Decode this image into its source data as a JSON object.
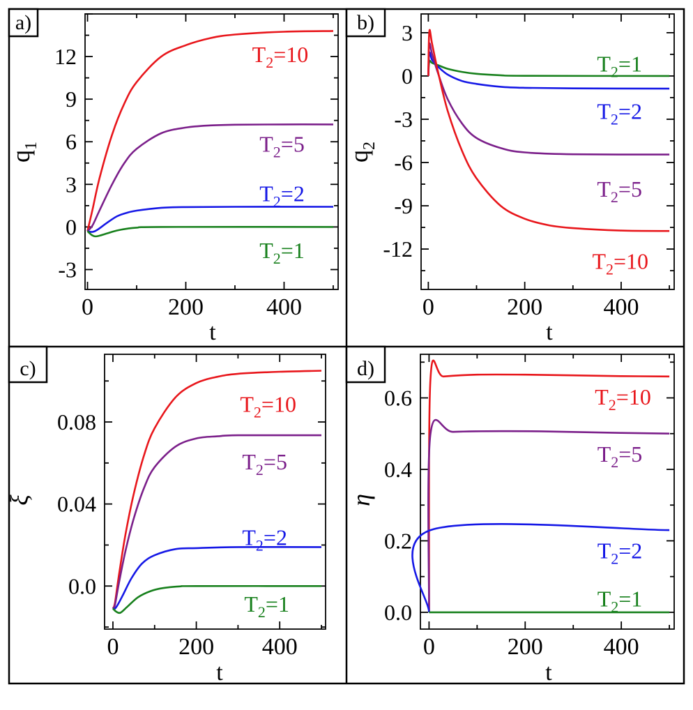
{
  "chart_data": [
    {
      "panel_label": "a)",
      "type": "line",
      "xlabel": "t",
      "ylabel": "q",
      "ylabel_sub": "1",
      "xlim": [
        -5,
        510
      ],
      "ylim": [
        -4.4,
        15
      ],
      "xticks": [
        0,
        200,
        400
      ],
      "xtick_labels": [
        "0",
        "200",
        "400"
      ],
      "yticks": [
        -3,
        0,
        3,
        6,
        9,
        12
      ],
      "ytick_labels": [
        "-3",
        "0",
        "3",
        "6",
        "9",
        "12"
      ],
      "series": [
        {
          "name": "T2=10",
          "label_main": "T",
          "label_sub": "2",
          "label_rest": "=10",
          "color": "#e8161b",
          "label_pos": [
            335,
            12.2
          ],
          "points": [
            [
              0,
              -0.3
            ],
            [
              10,
              1.2
            ],
            [
              25,
              3.5
            ],
            [
              50,
              6.5
            ],
            [
              75,
              8.7
            ],
            [
              100,
              10.2
            ],
            [
              150,
              12.0
            ],
            [
              200,
              12.8
            ],
            [
              250,
              13.3
            ],
            [
              300,
              13.55
            ],
            [
              400,
              13.75
            ],
            [
              500,
              13.8
            ]
          ]
        },
        {
          "name": "T2=5",
          "label_main": "T",
          "label_sub": "2",
          "label_rest": "=5",
          "color": "#7b1f8a",
          "label_pos": [
            350,
            5.9
          ],
          "points": [
            [
              0,
              -0.3
            ],
            [
              10,
              0.1
            ],
            [
              25,
              1.2
            ],
            [
              50,
              3.0
            ],
            [
              75,
              4.5
            ],
            [
              100,
              5.5
            ],
            [
              150,
              6.6
            ],
            [
              200,
              7.0
            ],
            [
              250,
              7.15
            ],
            [
              300,
              7.2
            ],
            [
              400,
              7.22
            ],
            [
              500,
              7.22
            ]
          ]
        },
        {
          "name": "T2=2",
          "label_main": "T",
          "label_sub": "2",
          "label_rest": "=2",
          "color": "#1518e6",
          "label_pos": [
            350,
            2.4
          ],
          "points": [
            [
              0,
              -0.3
            ],
            [
              10,
              -0.35
            ],
            [
              20,
              -0.2
            ],
            [
              40,
              0.3
            ],
            [
              60,
              0.75
            ],
            [
              80,
              1.0
            ],
            [
              100,
              1.15
            ],
            [
              150,
              1.35
            ],
            [
              200,
              1.4
            ],
            [
              300,
              1.42
            ],
            [
              500,
              1.42
            ]
          ]
        },
        {
          "name": "T2=1",
          "label_main": "T",
          "label_sub": "2",
          "label_rest": "=1",
          "color": "#17801c",
          "label_pos": [
            350,
            -1.6
          ],
          "points": [
            [
              0,
              -0.3
            ],
            [
              10,
              -0.6
            ],
            [
              20,
              -0.65
            ],
            [
              40,
              -0.45
            ],
            [
              60,
              -0.25
            ],
            [
              80,
              -0.12
            ],
            [
              100,
              -0.05
            ],
            [
              150,
              0
            ],
            [
              500,
              0
            ]
          ]
        }
      ]
    },
    {
      "panel_label": "b)",
      "type": "line",
      "xlabel": "t",
      "ylabel": "q",
      "ylabel_sub": "2",
      "xlim": [
        -15,
        510
      ],
      "ylim": [
        -14.8,
        4.3
      ],
      "xticks": [
        0,
        200,
        400
      ],
      "xtick_labels": [
        "0",
        "200",
        "400"
      ],
      "yticks": [
        -12,
        -9,
        -6,
        -3,
        0,
        3
      ],
      "ytick_labels": [
        "-12",
        "-9",
        "-6",
        "-3",
        "0",
        "3"
      ],
      "series": [
        {
          "name": "T2=1",
          "label_main": "T",
          "label_sub": "2",
          "label_rest": "=1",
          "color": "#17801c",
          "label_pos": [
            350,
            0.9
          ],
          "points": [
            [
              0,
              0
            ],
            [
              2,
              1.0
            ],
            [
              8,
              0.9
            ],
            [
              20,
              0.75
            ],
            [
              40,
              0.5
            ],
            [
              70,
              0.28
            ],
            [
              100,
              0.15
            ],
            [
              150,
              0.05
            ],
            [
              200,
              0.01
            ],
            [
              500,
              0
            ]
          ]
        },
        {
          "name": "T2=2",
          "label_main": "T",
          "label_sub": "2",
          "label_rest": "=2",
          "color": "#1518e6",
          "label_pos": [
            350,
            -2.4
          ],
          "points": [
            [
              0,
              0
            ],
            [
              2,
              1.6
            ],
            [
              8,
              1.1
            ],
            [
              20,
              0.65
            ],
            [
              40,
              0.1
            ],
            [
              70,
              -0.35
            ],
            [
              100,
              -0.55
            ],
            [
              150,
              -0.75
            ],
            [
              200,
              -0.82
            ],
            [
              300,
              -0.86
            ],
            [
              500,
              -0.88
            ]
          ]
        },
        {
          "name": "T2=5",
          "label_main": "T",
          "label_sub": "2",
          "label_rest": "=5",
          "color": "#7b1f8a",
          "label_pos": [
            350,
            -7.8
          ],
          "points": [
            [
              0,
              0
            ],
            [
              2,
              2.2
            ],
            [
              8,
              1.5
            ],
            [
              20,
              0.2
            ],
            [
              40,
              -1.6
            ],
            [
              70,
              -3.3
            ],
            [
              100,
              -4.3
            ],
            [
              150,
              -5.0
            ],
            [
              200,
              -5.3
            ],
            [
              300,
              -5.43
            ],
            [
              500,
              -5.45
            ]
          ]
        },
        {
          "name": "T2=10",
          "label_main": "T",
          "label_sub": "2",
          "label_rest": "=10",
          "color": "#e8161b",
          "label_pos": [
            340,
            -12.8
          ],
          "points": [
            [
              0,
              0
            ],
            [
              2,
              3.1
            ],
            [
              8,
              2.2
            ],
            [
              20,
              0.3
            ],
            [
              40,
              -2.4
            ],
            [
              70,
              -5.2
            ],
            [
              100,
              -7.1
            ],
            [
              150,
              -9.0
            ],
            [
              200,
              -9.9
            ],
            [
              250,
              -10.35
            ],
            [
              300,
              -10.55
            ],
            [
              400,
              -10.72
            ],
            [
              500,
              -10.75
            ]
          ]
        }
      ]
    },
    {
      "panel_label": "c)",
      "type": "line",
      "xlabel": "t",
      "ylabel": "ξ",
      "ylabel_sub": "",
      "xlim": [
        -20,
        510
      ],
      "ylim": [
        -0.021,
        0.113
      ],
      "xticks": [
        0,
        200,
        400
      ],
      "xtick_labels": [
        "0",
        "200",
        "400"
      ],
      "yticks": [
        0.0,
        0.04,
        0.08
      ],
      "ytick_labels": [
        "0.0",
        "0.04",
        "0.08"
      ],
      "series": [
        {
          "name": "T2=10",
          "label_main": "T",
          "label_sub": "2",
          "label_rest": "=10",
          "color": "#e8161b",
          "label_pos": [
            305,
            0.089
          ],
          "points": [
            [
              0,
              -0.011
            ],
            [
              5,
              -0.008
            ],
            [
              15,
              0.006
            ],
            [
              30,
              0.025
            ],
            [
              50,
              0.045
            ],
            [
              75,
              0.064
            ],
            [
              100,
              0.077
            ],
            [
              150,
              0.092
            ],
            [
              200,
              0.099
            ],
            [
              250,
              0.102
            ],
            [
              300,
              0.1035
            ],
            [
              400,
              0.1045
            ],
            [
              500,
              0.105
            ]
          ]
        },
        {
          "name": "T2=5",
          "label_main": "T",
          "label_sub": "2",
          "label_rest": "=5",
          "color": "#7b1f8a",
          "label_pos": [
            310,
            0.061
          ],
          "points": [
            [
              0,
              -0.011
            ],
            [
              5,
              -0.009
            ],
            [
              15,
              0.002
            ],
            [
              30,
              0.017
            ],
            [
              50,
              0.033
            ],
            [
              75,
              0.048
            ],
            [
              100,
              0.058
            ],
            [
              150,
              0.068
            ],
            [
              200,
              0.072
            ],
            [
              250,
              0.073
            ],
            [
              300,
              0.0735
            ],
            [
              500,
              0.0735
            ]
          ]
        },
        {
          "name": "T2=2",
          "label_main": "T",
          "label_sub": "2",
          "label_rest": "=2",
          "color": "#1518e6",
          "label_pos": [
            310,
            0.024
          ],
          "points": [
            [
              0,
              -0.011
            ],
            [
              5,
              -0.011
            ],
            [
              12,
              -0.009
            ],
            [
              25,
              -0.004
            ],
            [
              45,
              0.004
            ],
            [
              70,
              0.011
            ],
            [
              100,
              0.015
            ],
            [
              150,
              0.018
            ],
            [
              200,
              0.0185
            ],
            [
              300,
              0.019
            ],
            [
              500,
              0.019
            ]
          ]
        },
        {
          "name": "T2=1",
          "label_main": "T",
          "label_sub": "2",
          "label_rest": "=1",
          "color": "#17801c",
          "label_pos": [
            315,
            -0.0085
          ],
          "points": [
            [
              0,
              -0.011
            ],
            [
              8,
              -0.0125
            ],
            [
              18,
              -0.013
            ],
            [
              35,
              -0.01
            ],
            [
              60,
              -0.0055
            ],
            [
              90,
              -0.0025
            ],
            [
              120,
              -0.001
            ],
            [
              160,
              -0.0002
            ],
            [
              200,
              0
            ],
            [
              500,
              0
            ]
          ]
        }
      ]
    },
    {
      "panel_label": "d)",
      "type": "line",
      "xlabel": "t",
      "ylabel": "η",
      "ylabel_sub": "",
      "xlim": [
        -18,
        510
      ],
      "ylim": [
        -0.047,
        0.722
      ],
      "xticks": [
        0,
        200,
        400
      ],
      "xtick_labels": [
        "0",
        "200",
        "400"
      ],
      "yticks": [
        0.0,
        0.2,
        0.4,
        0.6
      ],
      "ytick_labels": [
        "0.0",
        "0.2",
        "0.4",
        "0.6"
      ],
      "series": [
        {
          "name": "T2=10",
          "label_main": "T",
          "label_sub": "2",
          "label_rest": "=10",
          "color": "#e8161b",
          "label_pos": [
            345,
            0.605
          ],
          "points": [
            [
              0,
              0
            ],
            [
              3,
              0.655
            ],
            [
              30,
              0.66
            ],
            [
              100,
              0.665
            ],
            [
              200,
              0.665
            ],
            [
              300,
              0.663
            ],
            [
              400,
              0.661
            ],
            [
              500,
              0.66
            ]
          ]
        },
        {
          "name": "T2=5",
          "label_main": "T",
          "label_sub": "2",
          "label_rest": "=5",
          "color": "#7b1f8a",
          "label_pos": [
            350,
            0.445
          ],
          "points": [
            [
              0,
              0
            ],
            [
              3,
              0.5
            ],
            [
              50,
              0.505
            ],
            [
              150,
              0.507
            ],
            [
              250,
              0.506
            ],
            [
              400,
              0.502
            ],
            [
              500,
              0.5
            ]
          ]
        },
        {
          "name": "T2=2",
          "label_main": "T",
          "label_sub": "2",
          "label_rest": "=2",
          "color": "#1518e6",
          "label_pos": [
            350,
            0.175
          ],
          "points": [
            [
              0,
              0
            ],
            [
              3,
              0.23
            ],
            [
              500,
              0.23
            ]
          ]
        },
        {
          "name": "T2=1",
          "label_main": "T",
          "label_sub": "2",
          "label_rest": "=1",
          "color": "#17801c",
          "label_pos": [
            350,
            0.04
          ],
          "points": [
            [
              0,
              0
            ],
            [
              500,
              0
            ]
          ]
        }
      ]
    }
  ]
}
